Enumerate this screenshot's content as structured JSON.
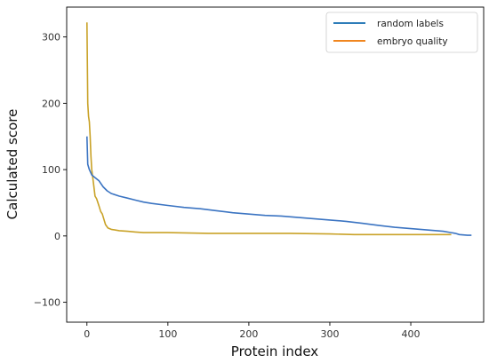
{
  "chart_data": {
    "type": "line",
    "title": "",
    "xlabel": "Protein index",
    "ylabel": "Calculated score",
    "xlim": [
      -25,
      490
    ],
    "ylim": [
      -130,
      345
    ],
    "xticks": [
      0,
      100,
      200,
      300,
      400
    ],
    "yticks": [
      -100,
      0,
      100,
      200,
      300
    ],
    "xtick_labels": [
      "0",
      "100",
      "200",
      "300",
      "400"
    ],
    "ytick_labels": [
      "−100",
      "0",
      "100",
      "200",
      "300"
    ],
    "grid": false,
    "legend_position": "top-right",
    "series": [
      {
        "name": "random labels",
        "color": "#3b74c2",
        "points": [
          [
            0,
            150
          ],
          [
            1,
            108
          ],
          [
            3,
            100
          ],
          [
            6,
            92
          ],
          [
            10,
            88
          ],
          [
            15,
            83
          ],
          [
            20,
            74
          ],
          [
            25,
            68
          ],
          [
            30,
            64
          ],
          [
            40,
            60
          ],
          [
            50,
            57
          ],
          [
            60,
            54
          ],
          [
            70,
            51
          ],
          [
            80,
            49
          ],
          [
            100,
            46
          ],
          [
            120,
            43
          ],
          [
            140,
            41
          ],
          [
            160,
            38
          ],
          [
            180,
            35
          ],
          [
            200,
            33
          ],
          [
            220,
            31
          ],
          [
            240,
            30
          ],
          [
            260,
            28
          ],
          [
            280,
            26
          ],
          [
            300,
            24
          ],
          [
            320,
            22
          ],
          [
            340,
            19
          ],
          [
            360,
            16
          ],
          [
            380,
            13
          ],
          [
            400,
            11
          ],
          [
            420,
            9
          ],
          [
            440,
            7
          ],
          [
            455,
            4
          ],
          [
            460,
            2
          ],
          [
            470,
            1
          ],
          [
            475,
            1
          ]
        ]
      },
      {
        "name": "embryo quality",
        "color": "#c9a227",
        "points": [
          [
            0,
            322
          ],
          [
            1,
            200
          ],
          [
            2,
            180
          ],
          [
            3,
            172
          ],
          [
            4,
            150
          ],
          [
            5,
            120
          ],
          [
            6,
            100
          ],
          [
            8,
            80
          ],
          [
            10,
            60
          ],
          [
            12,
            56
          ],
          [
            15,
            45
          ],
          [
            17,
            37
          ],
          [
            19,
            33
          ],
          [
            21,
            25
          ],
          [
            23,
            17
          ],
          [
            26,
            12
          ],
          [
            30,
            10
          ],
          [
            40,
            8
          ],
          [
            50,
            7
          ],
          [
            60,
            6
          ],
          [
            70,
            5
          ],
          [
            100,
            5
          ],
          [
            150,
            4
          ],
          [
            200,
            4
          ],
          [
            250,
            4
          ],
          [
            300,
            3
          ],
          [
            330,
            2
          ],
          [
            400,
            2
          ],
          [
            450,
            2
          ]
        ]
      }
    ],
    "legend": [
      {
        "label": "random labels",
        "color": "#2e7db9"
      },
      {
        "label": "embryo quality",
        "color": "#f0861f"
      }
    ]
  }
}
